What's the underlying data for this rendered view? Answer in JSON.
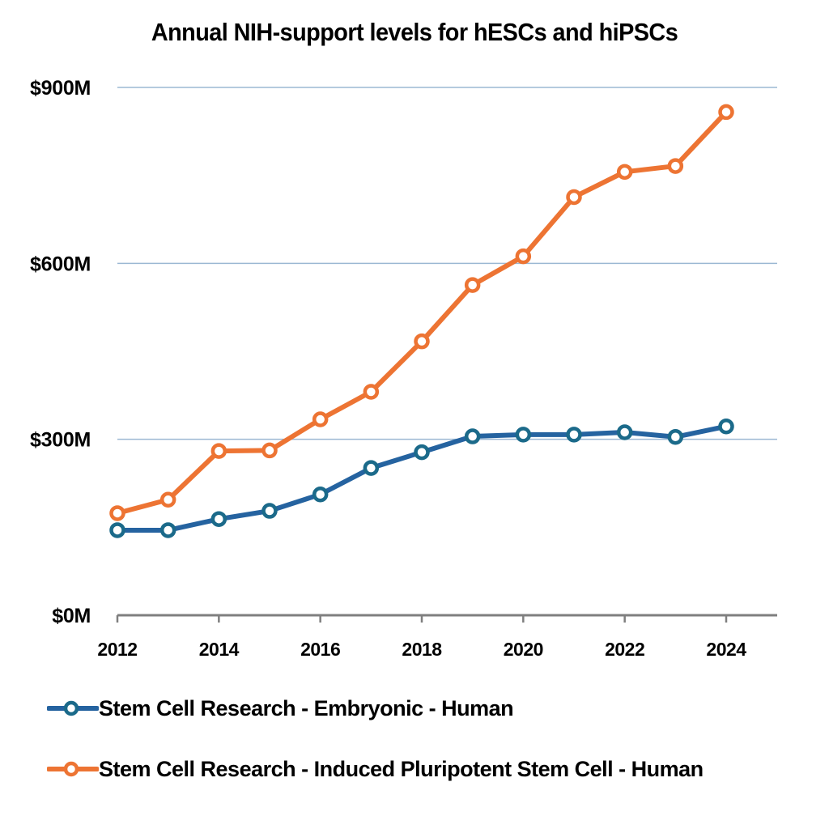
{
  "chart_data": {
    "type": "line",
    "title": "Annual NIH-support levels for hESCs and hiPSCs",
    "xlabel": "",
    "ylabel": "",
    "x": [
      2012,
      2013,
      2014,
      2015,
      2016,
      2017,
      2018,
      2019,
      2020,
      2021,
      2022,
      2023,
      2024
    ],
    "x_ticks": [
      2012,
      2014,
      2016,
      2018,
      2020,
      2022,
      2024
    ],
    "x_tick_labels": [
      "2012",
      "2014",
      "2016",
      "2018",
      "2020",
      "2022",
      "2024"
    ],
    "xlim": [
      2012,
      2025
    ],
    "y_ticks": [
      0,
      300,
      600,
      900
    ],
    "y_tick_labels": [
      "$0M",
      "$300M",
      "$600M",
      "$900M"
    ],
    "ylim": [
      0,
      900
    ],
    "y_units": "millions USD",
    "grid": "horizontal",
    "legend_position": "bottom",
    "series": [
      {
        "name": "Stem Cell Research - Embryonic - Human",
        "color": "#2563A0",
        "marker_color": "#1B6A8A",
        "values": [
          145,
          145,
          164,
          178,
          206,
          251,
          278,
          305,
          308,
          308,
          312,
          304,
          322
        ]
      },
      {
        "name": "Stem Cell Research - Induced Pluripotent Stem Cell - Human",
        "color": "#ED7433",
        "marker_color": "#ED7433",
        "values": [
          174,
          197,
          280,
          281,
          334,
          381,
          467,
          563,
          612,
          713,
          756,
          766,
          858
        ]
      }
    ],
    "colors": {
      "gridline": "#9BB8D3",
      "axis": "#7F7F7F"
    }
  }
}
